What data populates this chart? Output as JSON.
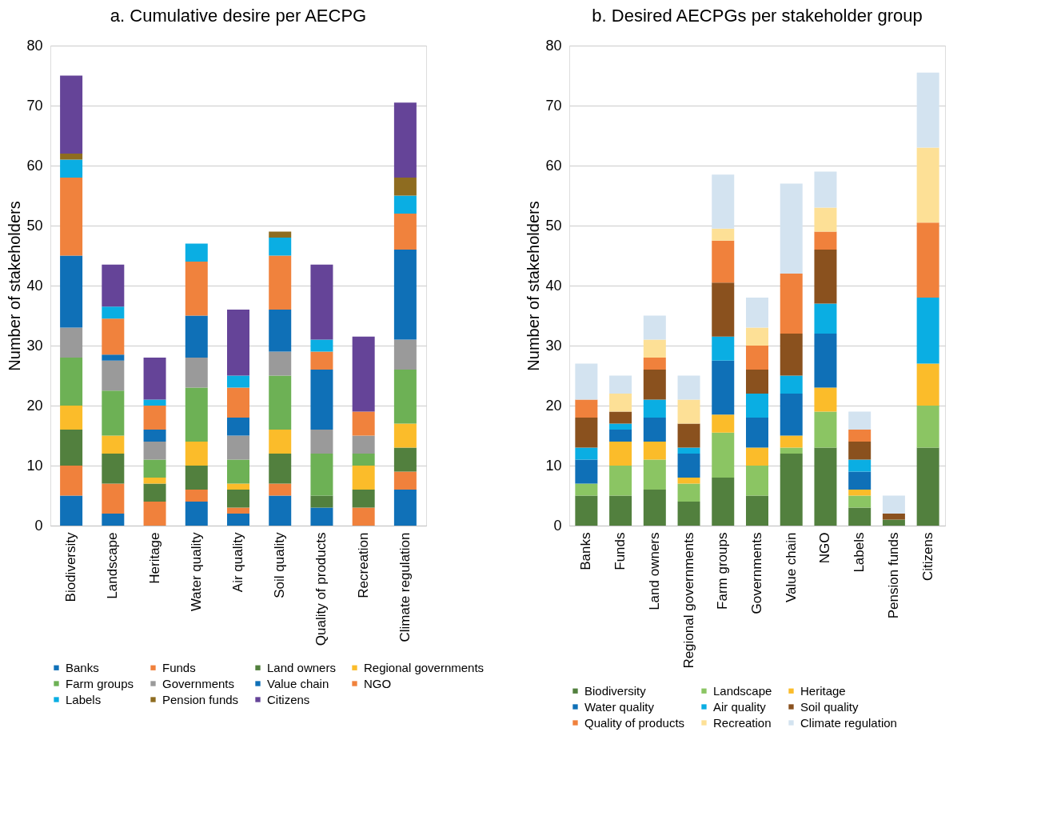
{
  "chart_data": [
    {
      "type": "bar",
      "title": "a. Cumulative desire per AECPG",
      "ylabel": "Number of stakeholders",
      "stacked": true,
      "grid": "y",
      "legend": "bottom",
      "categories": [
        "Biodiversity",
        "Landscape",
        "Heritage",
        "Water quality",
        "Air quality",
        "Soil quality",
        "Quality of products",
        "Recreation",
        "Climate regulation"
      ],
      "ylim": [
        0,
        80
      ],
      "yticks": [
        0,
        10,
        20,
        30,
        40,
        50,
        60,
        70,
        80
      ],
      "series": [
        {
          "name": "Banks",
          "color": "#1071b8",
          "values": [
            5,
            2,
            0,
            4,
            2,
            5,
            3,
            0,
            6
          ]
        },
        {
          "name": "Funds",
          "color": "#f0813c",
          "values": [
            5,
            5,
            4,
            2,
            1,
            2,
            0,
            3,
            3
          ]
        },
        {
          "name": "Land owners",
          "color": "#52803e",
          "values": [
            6,
            5,
            3,
            4,
            3,
            5,
            2,
            3,
            4
          ]
        },
        {
          "name": "Regional governments",
          "color": "#fbbc2a",
          "values": [
            4,
            3,
            1,
            4,
            1,
            4,
            0,
            4,
            4
          ]
        },
        {
          "name": "Farm groups",
          "color": "#6db155",
          "values": [
            8,
            7.5,
            3,
            9,
            4,
            9,
            7,
            2,
            9
          ]
        },
        {
          "name": "Governments",
          "color": "#9a9a9a",
          "values": [
            5,
            5,
            3,
            5,
            4,
            4,
            4,
            3,
            5
          ]
        },
        {
          "name": "Value chain",
          "color": "#0f70b7",
          "values": [
            12,
            1,
            2,
            7,
            3,
            7,
            10,
            0,
            15
          ]
        },
        {
          "name": "NGO",
          "color": "#f0823d",
          "values": [
            13,
            6,
            4,
            9,
            5,
            9,
            3,
            4,
            6
          ]
        },
        {
          "name": "Labels",
          "color": "#0aaee3",
          "values": [
            3,
            2,
            1,
            3,
            2,
            3,
            2,
            0,
            3
          ]
        },
        {
          "name": "Pension funds",
          "color": "#8e6c20",
          "values": [
            1,
            0,
            0,
            0,
            0,
            1,
            0,
            0,
            3
          ]
        },
        {
          "name": "Citizens",
          "color": "#654498",
          "values": [
            13,
            7,
            7,
            0,
            11,
            0,
            12.5,
            12.5,
            12.5
          ]
        }
      ]
    },
    {
      "type": "bar",
      "title": "b. Desired AECPGs per stakeholder group",
      "ylabel": "Number of stakeholders",
      "stacked": true,
      "grid": "y",
      "legend": "bottom",
      "categories": [
        "Banks",
        "Funds",
        "Land owners",
        "Regional governments",
        "Farm groups",
        "Governments",
        "Value chain",
        "NGO",
        "Labels",
        "Pension funds",
        "Citizens"
      ],
      "ylim": [
        0,
        80
      ],
      "yticks": [
        0,
        10,
        20,
        30,
        40,
        50,
        60,
        70,
        80
      ],
      "series": [
        {
          "name": "Biodiversity",
          "color": "#52803e",
          "values": [
            5,
            5,
            6,
            4,
            8,
            5,
            12,
            13,
            3,
            1,
            13
          ]
        },
        {
          "name": "Landscape",
          "color": "#8bc563",
          "values": [
            2,
            5,
            5,
            3,
            7.5,
            5,
            1,
            6,
            2,
            0,
            7
          ]
        },
        {
          "name": "Heritage",
          "color": "#fbbc2a",
          "values": [
            0,
            4,
            3,
            1,
            3,
            3,
            2,
            4,
            1,
            0,
            7
          ]
        },
        {
          "name": "Water quality",
          "color": "#0f70b7",
          "values": [
            4,
            2,
            4,
            4,
            9,
            5,
            7,
            9,
            3,
            0,
            0
          ]
        },
        {
          "name": "Air quality",
          "color": "#0aaee3",
          "values": [
            2,
            1,
            3,
            1,
            4,
            4,
            3,
            5,
            2,
            0,
            11
          ]
        },
        {
          "name": "Soil quality",
          "color": "#8a511e",
          "values": [
            5,
            2,
            5,
            4,
            9,
            4,
            7,
            9,
            3,
            1,
            0
          ]
        },
        {
          "name": "Quality of products",
          "color": "#f0813c",
          "values": [
            3,
            0,
            2,
            0,
            7,
            4,
            10,
            3,
            2,
            0,
            12.5
          ]
        },
        {
          "name": "Recreation",
          "color": "#fde096",
          "values": [
            0,
            3,
            3,
            4,
            2,
            3,
            0,
            4,
            0,
            0,
            12.5
          ]
        },
        {
          "name": "Climate regulation",
          "color": "#d3e3f0",
          "values": [
            6,
            3,
            4,
            4,
            9,
            5,
            15,
            6,
            3,
            3,
            12.5
          ]
        }
      ]
    }
  ]
}
